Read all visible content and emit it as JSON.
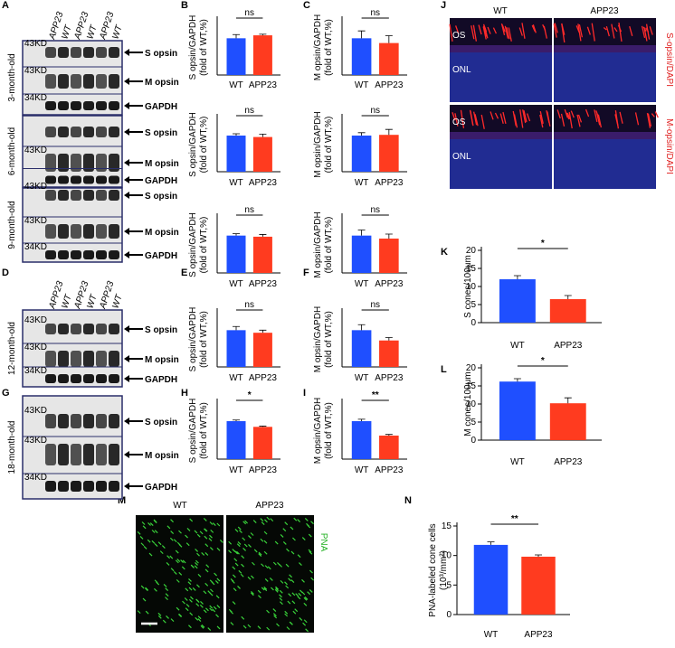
{
  "panel_letters": [
    "A",
    "B",
    "C",
    "J",
    "D",
    "E",
    "F",
    "G",
    "H",
    "I",
    "K",
    "L",
    "M",
    "N"
  ],
  "blots": [
    {
      "panel": "A",
      "lanes": [
        "APP23",
        "WT",
        "APP23",
        "WT",
        "APP23",
        "WT"
      ],
      "blocks": [
        {
          "age": "3-month-old",
          "rows": [
            {
              "band": "S opsin",
              "kd": "43KD"
            },
            {
              "band": "M opsin",
              "kd": "43KD"
            },
            {
              "band": "GAPDH",
              "kd": "34KD"
            }
          ]
        },
        {
          "age": "6-month-old",
          "rows": [
            {
              "band": "S opsin"
            },
            {
              "band": "M opsin",
              "kd": "43KD"
            },
            {
              "band": "GAPDH"
            }
          ]
        },
        {
          "age": "9-month-old",
          "rows": [
            {
              "band": "S opsin",
              "kd": "43KD"
            },
            {
              "band": "M opsin",
              "kd": "43KD"
            },
            {
              "band": "GAPDH",
              "kd": "34KD"
            }
          ]
        }
      ]
    },
    {
      "panel": "D",
      "lanes": [
        "APP23",
        "WT",
        "APP23",
        "WT",
        "APP23",
        "WT"
      ],
      "blocks": [
        {
          "age": "12-month-old",
          "rows": [
            {
              "band": "S opsin",
              "kd": "43KD"
            },
            {
              "band": "M opsin",
              "kd": "43KD"
            },
            {
              "band": "GAPDH",
              "kd": "34KD"
            }
          ]
        }
      ]
    },
    {
      "panel": "G",
      "blocks": [
        {
          "age": "18-month-old",
          "rows": [
            {
              "band": "S opsin",
              "kd": "43KD"
            },
            {
              "band": "M opsin",
              "kd": "43KD"
            },
            {
              "band": "GAPDH",
              "kd": "34KD"
            }
          ]
        }
      ]
    }
  ],
  "chart_data": [
    {
      "type": "bar",
      "panel": "B",
      "ylabel": [
        "S opsin/GAPDH",
        "(fold of WT,%)"
      ],
      "categories": [
        "WT",
        "APP23"
      ],
      "values": [
        100,
        108
      ],
      "errors": [
        10,
        3
      ],
      "colors": [
        "#1f4fff",
        "#ff3b1f"
      ],
      "ylim": [
        0,
        150
      ],
      "annotation": "ns"
    },
    {
      "type": "bar",
      "panel": "C",
      "ylabel": [
        "M opsin/GAPDH",
        "(fold of WT,%)"
      ],
      "categories": [
        "WT",
        "APP23"
      ],
      "values": [
        100,
        87
      ],
      "errors": [
        20,
        20
      ],
      "colors": [
        "#1f4fff",
        "#ff3b1f"
      ],
      "ylim": [
        0,
        150
      ],
      "annotation": "ns"
    },
    {
      "type": "bar",
      "ylabel": [
        "S opsin/GAPDH",
        "(fold of WT,%)"
      ],
      "categories": [
        "WT",
        "APP23"
      ],
      "values": [
        100,
        96
      ],
      "errors": [
        5,
        8
      ],
      "colors": [
        "#1f4fff",
        "#ff3b1f"
      ],
      "ylim": [
        0,
        150
      ],
      "annotation": "ns"
    },
    {
      "type": "bar",
      "ylabel": [
        "M opsin/GAPDH",
        "(fold of WT,%)"
      ],
      "categories": [
        "WT",
        "APP23"
      ],
      "values": [
        100,
        102
      ],
      "errors": [
        8,
        15
      ],
      "colors": [
        "#1f4fff",
        "#ff3b1f"
      ],
      "ylim": [
        0,
        150
      ],
      "annotation": "ns"
    },
    {
      "type": "bar",
      "ylabel": [
        "S opsin/GAPDH",
        "(fold of WT,%)"
      ],
      "categories": [
        "WT",
        "APP23"
      ],
      "values": [
        100,
        97
      ],
      "errors": [
        5,
        6
      ],
      "colors": [
        "#1f4fff",
        "#ff3b1f"
      ],
      "ylim": [
        0,
        150
      ],
      "annotation": "ns"
    },
    {
      "type": "bar",
      "ylabel": [
        "M opsin/GAPDH",
        "(fold of WT,%)"
      ],
      "categories": [
        "WT",
        "APP23"
      ],
      "values": [
        100,
        92
      ],
      "errors": [
        15,
        12
      ],
      "colors": [
        "#1f4fff",
        "#ff3b1f"
      ],
      "ylim": [
        0,
        150
      ],
      "annotation": "ns"
    },
    {
      "type": "bar",
      "panel": "E",
      "ylabel": [
        "S opsin/GAPDH",
        "(fold of WT,%)"
      ],
      "categories": [
        "WT",
        "APP23"
      ],
      "values": [
        100,
        93
      ],
      "errors": [
        10,
        7
      ],
      "colors": [
        "#1f4fff",
        "#ff3b1f"
      ],
      "ylim": [
        0,
        150
      ],
      "annotation": "ns"
    },
    {
      "type": "bar",
      "panel": "F",
      "ylabel": [
        "M opsin/GAPDH",
        "(fold of WT,%)"
      ],
      "categories": [
        "WT",
        "APP23"
      ],
      "values": [
        100,
        72
      ],
      "errors": [
        15,
        8
      ],
      "colors": [
        "#1f4fff",
        "#ff3b1f"
      ],
      "ylim": [
        0,
        150
      ],
      "annotation": "ns"
    },
    {
      "type": "bar",
      "panel": "H",
      "ylabel": [
        "S opsin/GAPDH",
        "(fold of WT,%)"
      ],
      "categories": [
        "WT",
        "APP23"
      ],
      "values": [
        100,
        85
      ],
      "errors": [
        3,
        2
      ],
      "colors": [
        "#1f4fff",
        "#ff3b1f"
      ],
      "ylim": [
        0,
        150
      ],
      "annotation": "*"
    },
    {
      "type": "bar",
      "panel": "I",
      "ylabel": [
        "M opsin/GAPDH",
        "(fold of WT,%)"
      ],
      "categories": [
        "WT",
        "APP23"
      ],
      "values": [
        100,
        62
      ],
      "errors": [
        5,
        3
      ],
      "colors": [
        "#1f4fff",
        "#ff3b1f"
      ],
      "ylim": [
        0,
        150
      ],
      "annotation": "**"
    },
    {
      "type": "bar",
      "panel": "K",
      "ylabel": [
        "S cones/100μm"
      ],
      "categories": [
        "WT",
        "APP23"
      ],
      "values": [
        12,
        6.5
      ],
      "errors": [
        1,
        1
      ],
      "colors": [
        "#1f4fff",
        "#ff3b1f"
      ],
      "ylim": [
        0,
        20
      ],
      "yticks": [
        0,
        5,
        10,
        15,
        20
      ],
      "annotation": "*"
    },
    {
      "type": "bar",
      "panel": "L",
      "ylabel": [
        "M cones/100μm"
      ],
      "categories": [
        "WT",
        "APP23"
      ],
      "values": [
        16.2,
        10.2
      ],
      "errors": [
        0.8,
        1.5
      ],
      "colors": [
        "#1f4fff",
        "#ff3b1f"
      ],
      "ylim": [
        0,
        20
      ],
      "yticks": [
        0,
        5,
        10,
        15,
        20
      ],
      "annotation": "*"
    },
    {
      "type": "bar",
      "panel": "N",
      "ylabel": [
        "PNA-labeled cone cells",
        "(10³/mm²)"
      ],
      "categories": [
        "WT",
        "APP23"
      ],
      "values": [
        11.8,
        9.8
      ],
      "errors": [
        0.5,
        0.3
      ],
      "colors": [
        "#1f4fff",
        "#ff3b1f"
      ],
      "ylim": [
        0,
        15
      ],
      "yticks": [
        0,
        5,
        10,
        15
      ],
      "annotation": "**"
    }
  ],
  "images": [
    {
      "panel": "J",
      "columns": [
        "WT",
        "APP23"
      ],
      "layers": [
        "OS",
        "ONL"
      ],
      "stains": [
        "S-opsin/DAPI",
        "M-opsin/DAPI"
      ]
    },
    {
      "panel": "M",
      "columns": [
        "WT",
        "APP23"
      ],
      "stain": "PNA"
    }
  ]
}
